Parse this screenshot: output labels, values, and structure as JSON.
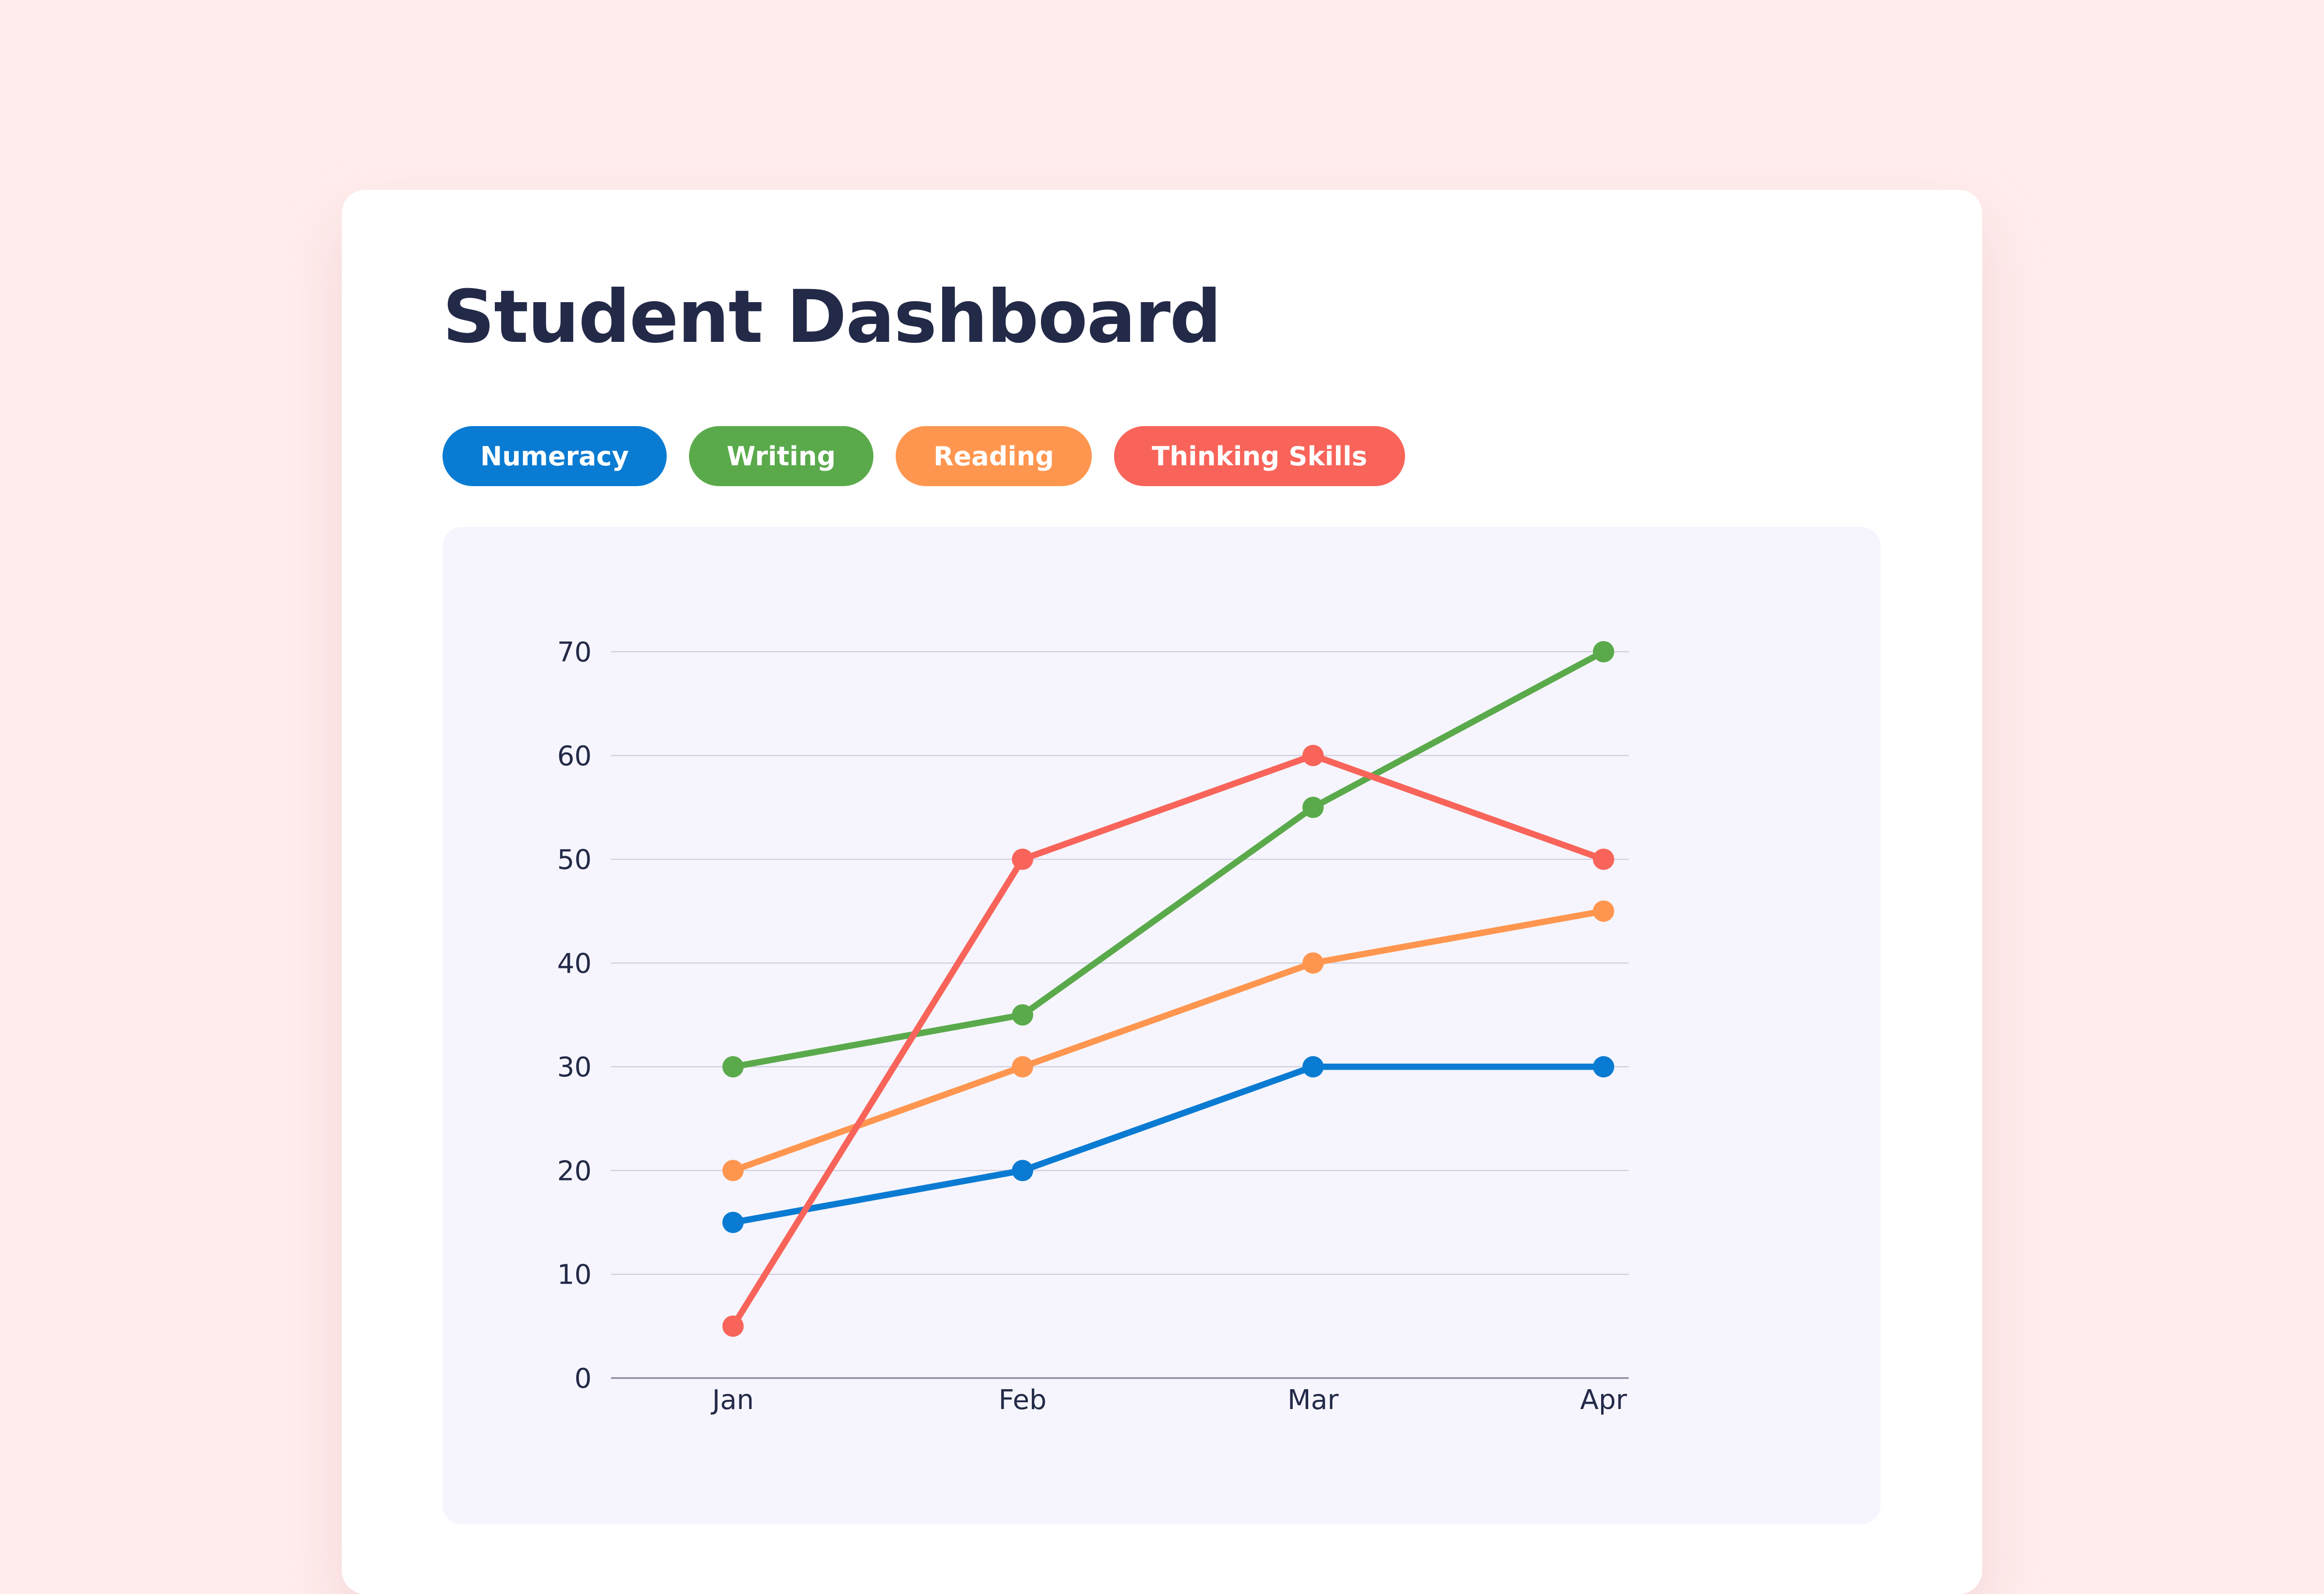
{
  "page": {
    "background": "#FFEDED"
  },
  "dashboard": {
    "title": "Student Dashboard"
  },
  "chart_data": {
    "type": "line",
    "title": "",
    "xlabel": "",
    "ylabel": "",
    "categories": [
      "Jan",
      "Feb",
      "Mar",
      "Apr"
    ],
    "y_ticks": [
      "0",
      "10",
      "20",
      "30",
      "40",
      "50",
      "60",
      "70"
    ],
    "ylim": [
      0,
      70
    ],
    "grid": true,
    "legend_position": "top-left",
    "series": [
      {
        "name": "Numeracy",
        "color": "#0A7BD2",
        "values": [
          15,
          20,
          30,
          30
        ]
      },
      {
        "name": "Writing",
        "color": "#5AAA4B",
        "values": [
          30,
          35,
          55,
          70
        ]
      },
      {
        "name": "Reading",
        "color": "#FF9650",
        "values": [
          20,
          30,
          40,
          45
        ]
      },
      {
        "name": "Thinking Skills",
        "color": "#F8645A",
        "values": [
          5,
          50,
          60,
          50
        ]
      }
    ]
  }
}
